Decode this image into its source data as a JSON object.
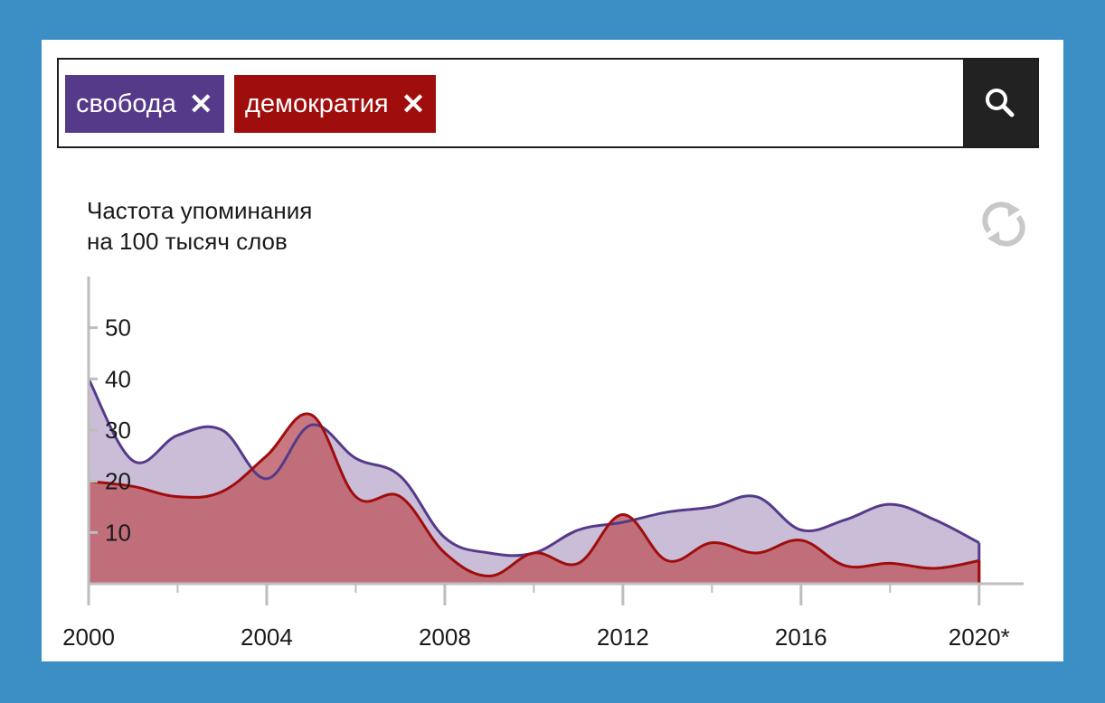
{
  "search": {
    "tags": [
      {
        "label": "свобода",
        "color": "#553a8a"
      },
      {
        "label": "демократия",
        "color": "#a00d0d"
      }
    ],
    "remove_glyph": "✕",
    "search_icon": "magnifier-icon"
  },
  "chart_data": {
    "type": "area",
    "title": "",
    "ylabel": "Частота упоминания\nна 100 тысяч слов",
    "xlabel": "",
    "x": [
      2000,
      2001,
      2002,
      2003,
      2004,
      2005,
      2006,
      2007,
      2008,
      2009,
      2010,
      2011,
      2012,
      2013,
      2014,
      2015,
      2016,
      2017,
      2018,
      2019,
      2020
    ],
    "x_tick_values": [
      2000,
      2004,
      2008,
      2012,
      2016,
      2020
    ],
    "x_tick_labels": [
      "2000",
      "2004",
      "2008",
      "2012",
      "2016",
      "2020*"
    ],
    "y_tick_values": [
      10,
      20,
      30,
      40,
      50
    ],
    "y_tick_labels": [
      "10",
      "20",
      "30",
      "40",
      "50"
    ],
    "xlim": [
      2000,
      2021
    ],
    "ylim": [
      0,
      60
    ],
    "grid": false,
    "series": [
      {
        "name": "свобода",
        "line_color": "#553a8a",
        "fill_color": "#c9bdd8",
        "values": [
          40,
          24,
          29,
          30,
          20.5,
          31,
          24.5,
          21,
          9,
          6,
          6,
          10.5,
          12,
          14,
          15,
          17,
          10.5,
          12.5,
          15.5,
          12.5,
          8
        ]
      },
      {
        "name": "демократия",
        "line_color": "#a00d0d",
        "fill_color": "#c0606b",
        "values": [
          20,
          19,
          17,
          18,
          25,
          33,
          17,
          17,
          6,
          1.5,
          6,
          4,
          13.5,
          4.5,
          8,
          6,
          8.5,
          3.5,
          4,
          3,
          4.5
        ]
      }
    ],
    "reset_icon": "refresh-icon"
  }
}
